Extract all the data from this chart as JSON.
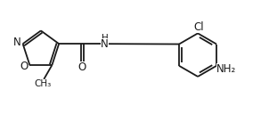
{
  "background": "#ffffff",
  "bond_color": "#1a1a1a",
  "bond_width": 1.3,
  "figsize": [
    3.02,
    1.47
  ],
  "dpi": 100,
  "xlim": [
    0,
    10.2
  ],
  "ylim": [
    0,
    4.9
  ]
}
